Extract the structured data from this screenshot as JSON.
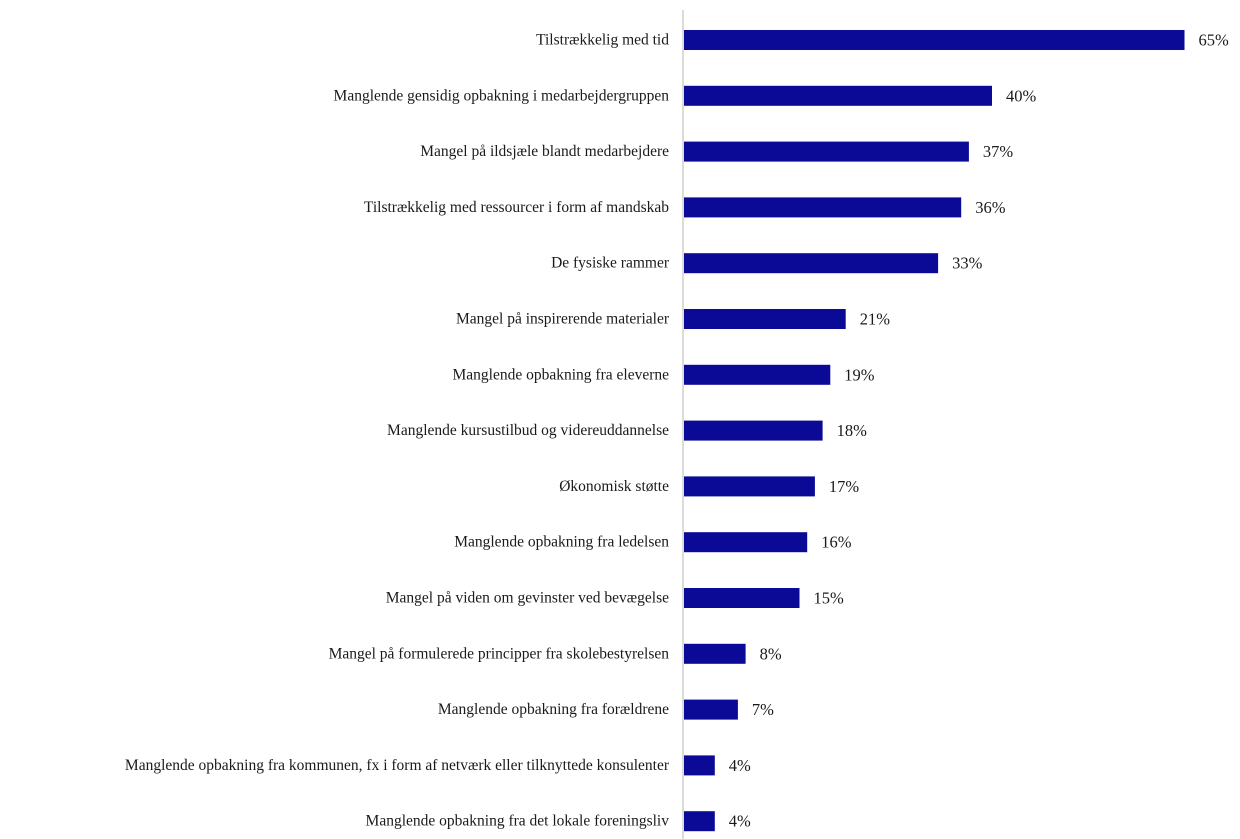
{
  "chart_data": {
    "type": "bar",
    "orientation": "horizontal",
    "categories": [
      "Tilstrækkelig med tid",
      "Manglende gensidig opbakning i medarbejdergruppen",
      "Mangel på ildsjæle blandt medarbejdere",
      "Tilstrækkelig med ressourcer i form af mandskab",
      "De fysiske rammer",
      "Mangel på inspirerende materialer",
      "Manglende opbakning fra eleverne",
      "Manglende kursustilbud og videreuddannelse",
      "Økonomisk støtte",
      "Manglende opbakning fra ledelsen",
      "Mangel på viden om gevinster ved bevægelse",
      "Mangel på formulerede principper fra skolebestyrelsen",
      "Manglende opbakning fra forældrene",
      "Manglende opbakning fra kommunen, fx i form af netværk eller tilknyttede konsulenter",
      "Manglende opbakning fra det lokale foreningsliv"
    ],
    "values": [
      65,
      40,
      37,
      36,
      33,
      21,
      19,
      18,
      17,
      16,
      15,
      8,
      7,
      4,
      4
    ],
    "value_labels": [
      "65%",
      "40%",
      "37%",
      "36%",
      "33%",
      "21%",
      "19%",
      "18%",
      "17%",
      "16%",
      "15%",
      "8%",
      "7%",
      "4%",
      "4%"
    ],
    "bar_color": "#0a0a96",
    "axis_color": "#cfcfcf",
    "xlim": [
      0,
      70
    ],
    "grid": false,
    "legend": "none"
  }
}
